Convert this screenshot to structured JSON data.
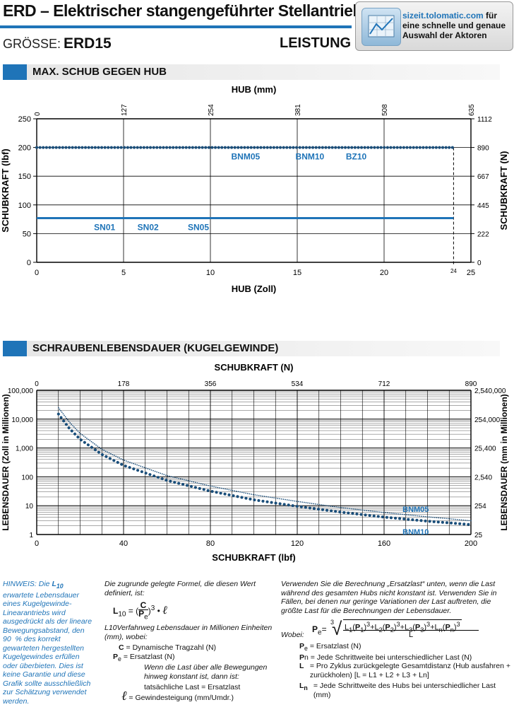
{
  "header": {
    "title": "ERD – Elektrischer stangengeführter Stellantrieb",
    "size_label": "GRÖSSE:",
    "size_value": "ERD15",
    "section_label": "LEISTUNG",
    "ad_url": "sizeit.tolomatic.com",
    "ad_url_suffix": "für",
    "ad_line2": "eine schnelle und genaue",
    "ad_line3": "Auswahl der Aktoren"
  },
  "sections": {
    "thrust": "MAX. SCHUB GEGEN HUB",
    "life": "SCHRAUBENLEBENSDAUER (KUGELGEWINDE)"
  },
  "chart_data": [
    {
      "type": "line",
      "title": "",
      "xlabel": "HUB (Zoll)",
      "x2label": "HUB (mm)",
      "ylabel": "SCHUBKRAFT (lbf)",
      "y2label": "SCHUBKRAFT (N)",
      "xlim": [
        0,
        25
      ],
      "ylim": [
        0,
        250
      ],
      "x_ticks": [
        "0",
        "5",
        "10",
        "15",
        "20",
        "25"
      ],
      "x2_ticks": [
        "0",
        "127",
        "254",
        "381",
        "508",
        "635"
      ],
      "y_ticks": [
        "0",
        "50",
        "100",
        "150",
        "200",
        "250"
      ],
      "y2_ticks": [
        "0",
        "222",
        "445",
        "667",
        "890",
        "1112"
      ],
      "max_stroke_label": "24",
      "series": [
        {
          "name": "BNM05 BNM10 BZ10",
          "labels": [
            "BNM05",
            "BNM10",
            "BZ10"
          ],
          "style": "dotted",
          "x": [
            0,
            24
          ],
          "y": [
            200,
            200
          ]
        },
        {
          "name": "SN01 SN02 SN05",
          "labels": [
            "SN01",
            "SN02",
            "SN05"
          ],
          "style": "solid",
          "x": [
            0,
            24
          ],
          "y": [
            77,
            77
          ]
        }
      ],
      "grid": true
    },
    {
      "type": "line",
      "title": "",
      "xlabel": "SCHUBKRAFT (lbf)",
      "x2label": "SCHUBKRAFT (N)",
      "ylabel": "LEBENSDAUER (Zoll in Millionen)",
      "y2label": "LEBENSDAUER (mm in Millionen)",
      "xlim": [
        0,
        200
      ],
      "ylim": [
        1,
        100000
      ],
      "y_scale": "log",
      "x_ticks": [
        "0",
        "40",
        "80",
        "120",
        "160",
        "200"
      ],
      "x2_ticks": [
        "0",
        "178",
        "356",
        "534",
        "712",
        "890"
      ],
      "y_ticks": [
        "1",
        "10",
        "100",
        "1,000",
        "10,000",
        "100,000"
      ],
      "y2_ticks": [
        "25",
        "254",
        "2,540",
        "25,400",
        "254,000",
        "2,540,000"
      ],
      "series": [
        {
          "name": "BNM05",
          "style": "dotted-fine",
          "x": [
            10,
            15,
            20,
            30,
            40,
            60,
            80,
            100,
            120,
            140,
            160,
            180,
            200
          ],
          "y": [
            25000,
            8000,
            3200,
            900,
            380,
            110,
            48,
            24,
            14,
            8.6,
            5.8,
            4.1,
            3
          ]
        },
        {
          "name": "BNM10",
          "style": "dotted",
          "x": [
            10,
            15,
            20,
            30,
            40,
            60,
            80,
            100,
            120,
            140,
            160,
            180,
            200
          ],
          "y": [
            15000,
            4800,
            2000,
            600,
            250,
            75,
            32,
            16,
            9.5,
            6,
            4,
            2.9,
            2.2
          ]
        }
      ],
      "grid": true
    }
  ],
  "notes": {
    "hint_html": "HINWEIS: Die <b>L<sub>10</sub></b> erwartete Lebensdauer eines Kugelgewinde-Linearantriebs wird ausgedrückt als der lineare Bewegungsabstand, den 90&nbsp;&nbsp;% des korrekt gewarteten hergestellten Kugelgewindes erfüllen oder überbieten. Dies ist keine Garantie und diese Grafik sollte ausschließlich zur Schätzung verwendet werden.",
    "col2_intro": "Die zugrunde gelegte Formel, die diesen Wert definiert, ist:",
    "col2_l10desc": "L10Verfahrweg Lebensdauer in Millionen Einheiten (mm), wobei:",
    "col2_c": "= Dynamische Tragzahl (N)",
    "col2_pe": "= Ersatzlast (N)",
    "col2_when": "Wenn die Last über alle Bewegungen hinweg konstant ist, dann ist:",
    "col2_actual": "tatsächliche Last = Ersatzlast",
    "col2_lead": "= Gewindesteigung (mm/Umdr.)",
    "col3_intro": "Verwenden Sie die Berechnung „Ersatzlast“ unten, wenn die Last während des gesamten Hubs nicht konstant ist. Verwenden Sie in Fällen, bei denen nur geringe Variationen der Last auftreten, die größte Last für die Berechnungen der Lebensdauer.",
    "col3_wobei": "Wobei:",
    "col3_pe": "= Ersatzlast (N)",
    "col3_pn": "= Jede Schrittweite bei unterschiedlicher Last (N)",
    "col3_l": "= Pro Zyklus zurückgelegte Gesamtdistanz (Hub ausfahren + zurückholen) [L = L1 + L2 + L3 + Ln]",
    "col3_ln": "= Jede Schrittweite des Hubs bei unterschiedlicher Last (mm)"
  },
  "colors": {
    "accent": "#1f74b8",
    "dots": "#1a4e7a"
  }
}
